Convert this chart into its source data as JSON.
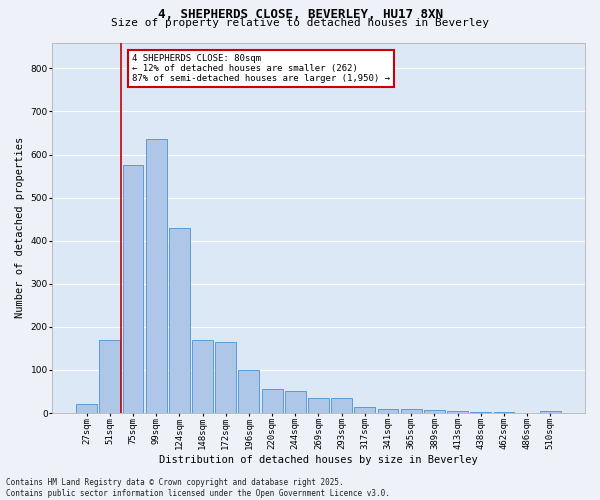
{
  "title": "4, SHEPHERDS CLOSE, BEVERLEY, HU17 8XN",
  "subtitle": "Size of property relative to detached houses in Beverley",
  "xlabel": "Distribution of detached houses by size in Beverley",
  "ylabel": "Number of detached properties",
  "categories": [
    "27sqm",
    "51sqm",
    "75sqm",
    "99sqm",
    "124sqm",
    "148sqm",
    "172sqm",
    "196sqm",
    "220sqm",
    "244sqm",
    "269sqm",
    "293sqm",
    "317sqm",
    "341sqm",
    "365sqm",
    "389sqm",
    "413sqm",
    "438sqm",
    "462sqm",
    "486sqm",
    "510sqm"
  ],
  "values": [
    20,
    170,
    575,
    635,
    430,
    170,
    165,
    100,
    55,
    50,
    35,
    35,
    15,
    10,
    10,
    7,
    5,
    3,
    2,
    1,
    5
  ],
  "bar_color": "#aec6e8",
  "bar_edge_color": "#5b9bd5",
  "vline_x": 1.5,
  "vline_color": "#cc0000",
  "annotation_box_text": "4 SHEPHERDS CLOSE: 80sqm\n← 12% of detached houses are smaller (262)\n87% of semi-detached houses are larger (1,950) →",
  "annotation_box_color": "#cc0000",
  "ylim": [
    0,
    860
  ],
  "yticks": [
    0,
    100,
    200,
    300,
    400,
    500,
    600,
    700,
    800
  ],
  "footnote": "Contains HM Land Registry data © Crown copyright and database right 2025.\nContains public sector information licensed under the Open Government Licence v3.0.",
  "bg_color": "#eef2f8",
  "plot_bg_color": "#dce8f5",
  "grid_color": "#ffffff",
  "title_fontsize": 9,
  "subtitle_fontsize": 8,
  "axis_label_fontsize": 7.5,
  "tick_fontsize": 6.5,
  "annotation_fontsize": 6.5,
  "footnote_fontsize": 5.5
}
